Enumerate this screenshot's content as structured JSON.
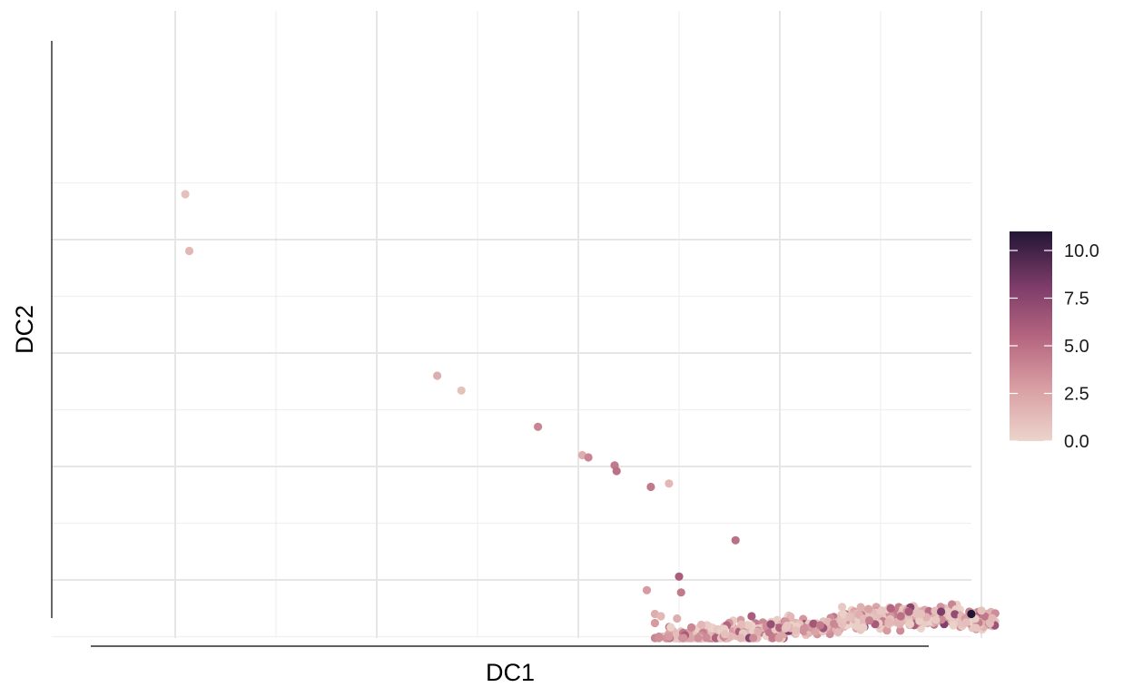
{
  "chart_data": {
    "type": "scatter",
    "xlabel": "DC1",
    "ylabel": "DC2",
    "x_tick_labels": [],
    "y_tick_labels": [],
    "grid": true,
    "xlim": [
      -0.21,
      0.21
    ],
    "ylim": [
      -0.35,
      0.35
    ],
    "x_major_gridlines": [
      -0.2,
      -0.1,
      0.0,
      0.1,
      0.2
    ],
    "x_minor_gridlines": [
      -0.15,
      -0.05,
      0.05,
      0.15
    ],
    "y_major_gridlines": [
      -0.2,
      -0.1,
      0.0,
      0.1,
      0.2,
      0.3
    ],
    "y_minor_gridlines": [
      -0.25,
      -0.15,
      -0.05,
      0.05,
      0.15,
      0.25,
      0.35
    ],
    "color_variable_range": [
      0,
      11
    ],
    "colorbar": {
      "ticks": [
        "0.0",
        "2.5",
        "5.0",
        "7.5",
        "10.0"
      ],
      "tick_values": [
        0,
        2.5,
        5,
        7.5,
        10
      ],
      "range": [
        0,
        11
      ],
      "colors": [
        "#ecd4cb",
        "#d99fa3",
        "#b4657f",
        "#7a3a68",
        "#221634"
      ],
      "placement": "right"
    },
    "series": [
      {
        "points": [
          {
            "x": -0.195,
            "y": 0.34,
            "c": 1.0
          },
          {
            "x": -0.193,
            "y": 0.29,
            "c": 1.5
          },
          {
            "x": -0.07,
            "y": 0.18,
            "c": 2.0
          },
          {
            "x": -0.058,
            "y": 0.167,
            "c": 1.0
          },
          {
            "x": -0.02,
            "y": 0.135,
            "c": 4.0
          },
          {
            "x": 0.002,
            "y": 0.11,
            "c": 2.0
          },
          {
            "x": 0.005,
            "y": 0.108,
            "c": 4.0
          },
          {
            "x": 0.018,
            "y": 0.101,
            "c": 4.5
          },
          {
            "x": 0.019,
            "y": 0.096,
            "c": 5.0
          },
          {
            "x": 0.036,
            "y": 0.082,
            "c": 4.5
          },
          {
            "x": 0.045,
            "y": 0.085,
            "c": 1.5
          },
          {
            "x": 0.078,
            "y": 0.035,
            "c": 5.0
          },
          {
            "x": 0.05,
            "y": 0.003,
            "c": 6.0
          },
          {
            "x": 0.034,
            "y": -0.009,
            "c": 3.0
          },
          {
            "x": 0.051,
            "y": -0.011,
            "c": 4.5
          },
          {
            "x": 0.038,
            "y": -0.03,
            "c": 2.0
          },
          {
            "x": 0.041,
            "y": -0.032,
            "c": 1.5
          },
          {
            "x": 0.049,
            "y": -0.034,
            "c": 2.0
          },
          {
            "x": 0.038,
            "y": -0.038,
            "c": 3.0
          },
          {
            "x": 0.04,
            "y": -0.05,
            "c": 3.5
          },
          {
            "x": 0.045,
            "y": -0.05,
            "c": 3.0
          },
          {
            "x": 0.038,
            "y": -0.059,
            "c": 4.0
          },
          {
            "x": 0.04,
            "y": -0.059,
            "c": 3.5
          },
          {
            "x": 0.086,
            "y": -0.032,
            "c": 6.0
          },
          {
            "x": 0.12,
            "y": -0.04,
            "c": 4.5
          },
          {
            "x": 0.154,
            "y": -0.037,
            "c": 1.5
          },
          {
            "x": 0.16,
            "y": -0.032,
            "c": 5.0
          },
          {
            "x": 0.17,
            "y": -0.03,
            "c": 1.0
          },
          {
            "x": 0.155,
            "y": -0.025,
            "c": 5.5
          },
          {
            "x": 0.18,
            "y": -0.028,
            "c": 8.0
          },
          {
            "x": 0.164,
            "y": -0.028,
            "c": 6.0
          },
          {
            "x": 0.194,
            "y": -0.028,
            "c": 4.0
          },
          {
            "x": 0.2,
            "y": -0.027,
            "c": 1.0
          },
          {
            "x": 0.195,
            "y": -0.03,
            "c": 11.0
          }
        ],
        "bands": [
          {
            "x_range": [
              0.042,
              0.072
            ],
            "y_center": -0.052,
            "y_spread": 0.014,
            "count": 110
          },
          {
            "x_range": [
              0.072,
              0.102
            ],
            "y_center": -0.046,
            "y_spread": 0.012,
            "count": 95
          },
          {
            "x_range": [
              0.102,
              0.13
            ],
            "y_center": -0.04,
            "y_spread": 0.01,
            "count": 85
          },
          {
            "x_range": [
              0.13,
              0.16
            ],
            "y_center": -0.034,
            "y_spread": 0.012,
            "count": 110
          },
          {
            "x_range": [
              0.16,
              0.19
            ],
            "y_center": -0.032,
            "y_spread": 0.012,
            "count": 120
          },
          {
            "x_range": [
              0.19,
              0.207
            ],
            "y_center": -0.036,
            "y_spread": 0.009,
            "count": 75
          }
        ]
      }
    ]
  }
}
